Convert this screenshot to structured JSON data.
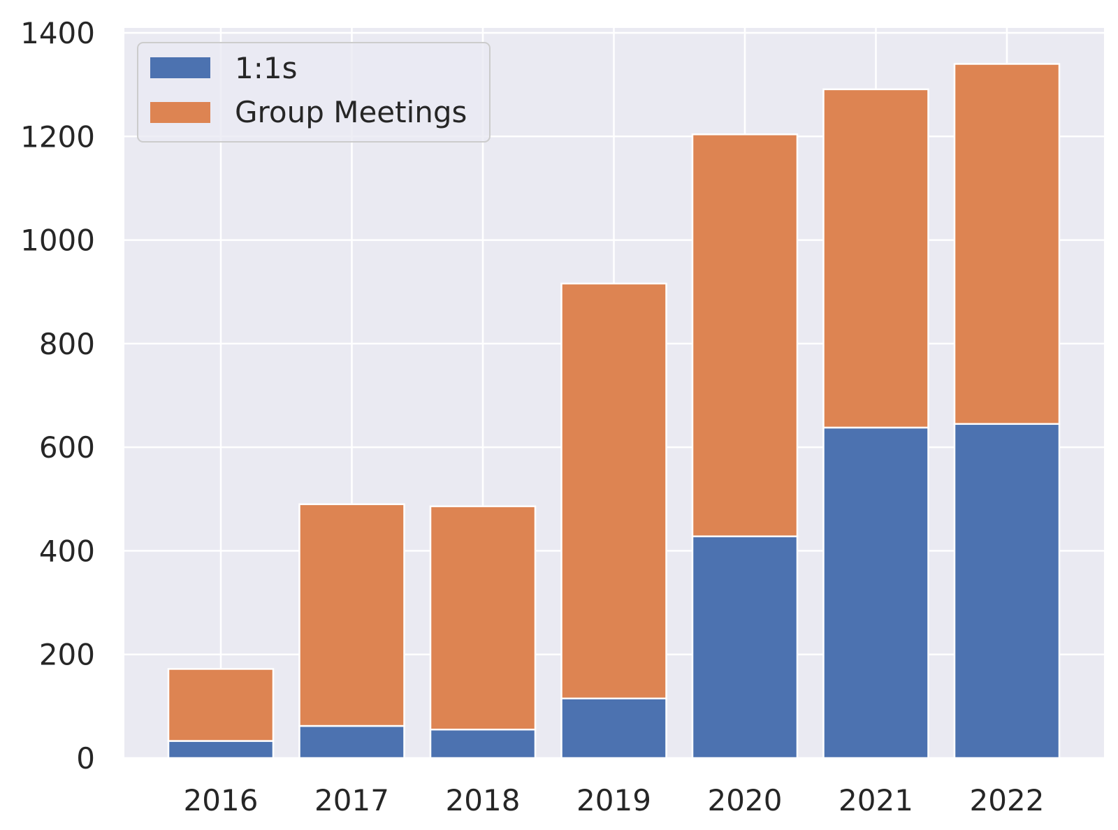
{
  "chart_data": {
    "type": "bar",
    "stacked": true,
    "categories": [
      "2016",
      "2017",
      "2018",
      "2019",
      "2020",
      "2021",
      "2022"
    ],
    "series": [
      {
        "name": "1:1s",
        "values": [
          33,
          62,
          55,
          115,
          428,
          638,
          645
        ],
        "color": "#4c72b0"
      },
      {
        "name": "Group Meetings",
        "values": [
          139,
          428,
          431,
          801,
          776,
          653,
          695
        ],
        "color": "#dd8452"
      }
    ],
    "ylim": [
      0,
      1400
    ],
    "yticks": [
      0,
      200,
      400,
      600,
      800,
      1000,
      1200,
      1400
    ],
    "grid": true,
    "legend_position": "top-left",
    "colors": {
      "background": "#eaeaf2",
      "grid": "#ffffff",
      "text": "#262626"
    }
  }
}
